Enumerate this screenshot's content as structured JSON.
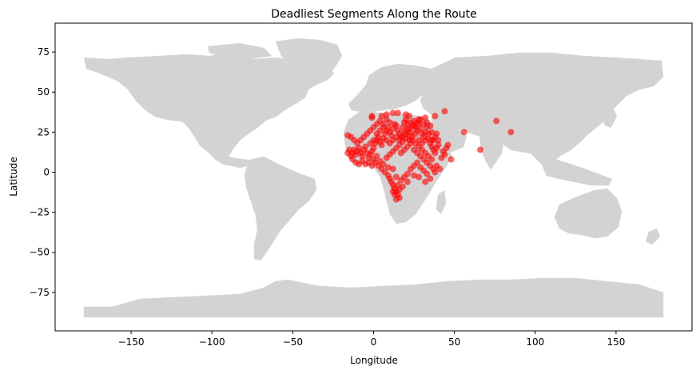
{
  "chart_data": {
    "type": "scatter",
    "title": "Deadliest Segments Along the Route",
    "xlabel": "Longitude",
    "ylabel": "Latitude",
    "xlim": [
      -197,
      197
    ],
    "ylim": [
      -99,
      93
    ],
    "xticks": [
      -150,
      -100,
      -50,
      0,
      50,
      100,
      150
    ],
    "yticks": [
      -75,
      -50,
      -25,
      0,
      25,
      50,
      75
    ],
    "xtick_labels": [
      "−150",
      "−100",
      "−50",
      "0",
      "50",
      "100",
      "150"
    ],
    "ytick_labels": [
      "−75",
      "−50",
      "−25",
      "0",
      "25",
      "50",
      "75"
    ],
    "grid": false,
    "point_color": "#ff0000",
    "land_color": "#d3d3d3",
    "series": [
      {
        "points": [
          [
            -1,
            35
          ],
          [
            -1,
            34
          ],
          [
            5,
            35
          ],
          [
            8,
            36
          ],
          [
            12,
            37
          ],
          [
            15,
            37
          ],
          [
            20,
            36
          ],
          [
            22,
            35
          ],
          [
            28,
            33
          ],
          [
            32,
            34
          ],
          [
            38,
            35
          ],
          [
            44,
            38
          ],
          [
            -14,
            10
          ],
          [
            -13,
            12
          ],
          [
            -12,
            14
          ],
          [
            -11,
            11
          ],
          [
            -10,
            13
          ],
          [
            -9,
            15
          ],
          [
            -8,
            12
          ],
          [
            -7,
            10
          ],
          [
            -6,
            14
          ],
          [
            -5,
            16
          ],
          [
            -4,
            12
          ],
          [
            -3,
            9
          ],
          [
            -2,
            11
          ],
          [
            -1,
            13
          ],
          [
            0,
            15
          ],
          [
            1,
            18
          ],
          [
            2,
            20
          ],
          [
            3,
            22
          ],
          [
            4,
            19
          ],
          [
            5,
            17
          ],
          [
            6,
            21
          ],
          [
            7,
            24
          ],
          [
            8,
            26
          ],
          [
            9,
            28
          ],
          [
            10,
            25
          ],
          [
            11,
            23
          ],
          [
            12,
            27
          ],
          [
            13,
            30
          ],
          [
            14,
            29
          ],
          [
            15,
            26
          ],
          [
            16,
            24
          ],
          [
            17,
            22
          ],
          [
            18,
            28
          ],
          [
            19,
            31
          ],
          [
            20,
            33
          ],
          [
            21,
            30
          ],
          [
            22,
            27
          ],
          [
            23,
            25
          ],
          [
            24,
            29
          ],
          [
            25,
            32
          ],
          [
            26,
            28
          ],
          [
            27,
            26
          ],
          [
            28,
            30
          ],
          [
            29,
            27
          ],
          [
            30,
            24
          ],
          [
            31,
            22
          ],
          [
            32,
            25
          ],
          [
            33,
            28
          ],
          [
            34,
            21
          ],
          [
            35,
            18
          ],
          [
            36,
            16
          ],
          [
            37,
            14
          ],
          [
            38,
            12
          ],
          [
            39,
            15
          ],
          [
            40,
            17
          ],
          [
            0,
            8
          ],
          [
            2,
            10
          ],
          [
            4,
            7
          ],
          [
            6,
            5
          ],
          [
            8,
            9
          ],
          [
            10,
            11
          ],
          [
            12,
            13
          ],
          [
            14,
            15
          ],
          [
            16,
            17
          ],
          [
            18,
            19
          ],
          [
            20,
            21
          ],
          [
            22,
            23
          ],
          [
            24,
            20
          ],
          [
            26,
            18
          ],
          [
            28,
            16
          ],
          [
            30,
            14
          ],
          [
            32,
            12
          ],
          [
            34,
            10
          ],
          [
            36,
            8
          ],
          [
            3,
            4
          ],
          [
            5,
            2
          ],
          [
            7,
            0
          ],
          [
            9,
            -2
          ],
          [
            10,
            -4
          ],
          [
            11,
            -6
          ],
          [
            12,
            -8
          ],
          [
            13,
            -10
          ],
          [
            14,
            -12
          ],
          [
            15,
            -14
          ],
          [
            16,
            -16
          ],
          [
            14,
            -17
          ],
          [
            13,
            -14
          ],
          [
            12,
            -12
          ],
          [
            15,
            -8
          ],
          [
            17,
            -5
          ],
          [
            19,
            -3
          ],
          [
            21,
            -1
          ],
          [
            23,
            2
          ],
          [
            25,
            4
          ],
          [
            27,
            6
          ],
          [
            29,
            3
          ],
          [
            31,
            1
          ],
          [
            33,
            -1
          ],
          [
            -16,
            23
          ],
          [
            -14,
            22
          ],
          [
            -12,
            20
          ],
          [
            -10,
            18
          ],
          [
            -8,
            20
          ],
          [
            -6,
            22
          ],
          [
            -4,
            24
          ],
          [
            -2,
            26
          ],
          [
            0,
            28
          ],
          [
            2,
            30
          ],
          [
            4,
            32
          ],
          [
            6,
            30
          ],
          [
            8,
            33
          ],
          [
            10,
            31
          ],
          [
            -15,
            14
          ],
          [
            -16,
            12
          ],
          [
            -13,
            8
          ],
          [
            -11,
            6
          ],
          [
            -9,
            5
          ],
          [
            -7,
            7
          ],
          [
            -5,
            5
          ],
          [
            -3,
            6
          ],
          [
            -1,
            4
          ],
          [
            1,
            6
          ],
          [
            17,
            12
          ],
          [
            19,
            14
          ],
          [
            21,
            16
          ],
          [
            23,
            18
          ],
          [
            25,
            14
          ],
          [
            27,
            12
          ],
          [
            29,
            10
          ],
          [
            31,
            8
          ],
          [
            33,
            6
          ],
          [
            35,
            4
          ],
          [
            37,
            2
          ],
          [
            38,
            0
          ],
          [
            39,
            4
          ],
          [
            41,
            2
          ],
          [
            42,
            9
          ],
          [
            43,
            13
          ],
          [
            44,
            11
          ],
          [
            45,
            15
          ],
          [
            46,
            17
          ],
          [
            48,
            8
          ],
          [
            35,
            -4
          ],
          [
            32,
            -6
          ],
          [
            28,
            -3
          ],
          [
            25,
            -2
          ],
          [
            21,
            -6
          ],
          [
            18,
            -9
          ],
          [
            16,
            -11
          ],
          [
            14,
            -3
          ],
          [
            12,
            2
          ],
          [
            9,
            3
          ],
          [
            19,
            25
          ],
          [
            21,
            27
          ],
          [
            23,
            31
          ],
          [
            25,
            29
          ],
          [
            27,
            31
          ],
          [
            29,
            33
          ],
          [
            31,
            30
          ],
          [
            33,
            31
          ],
          [
            35,
            29
          ],
          [
            36,
            25
          ],
          [
            37,
            20
          ],
          [
            38,
            22
          ],
          [
            39,
            24
          ],
          [
            40,
            20
          ],
          [
            -2,
            18
          ],
          [
            0,
            20
          ],
          [
            2,
            24
          ],
          [
            4,
            26
          ],
          [
            6,
            28
          ],
          [
            8,
            20
          ],
          [
            10,
            18
          ],
          [
            12,
            20
          ],
          [
            14,
            22
          ],
          [
            16,
            20
          ],
          [
            18,
            22
          ],
          [
            20,
            24
          ],
          [
            22,
            20
          ],
          [
            24,
            22
          ],
          [
            26,
            24
          ],
          [
            28,
            20
          ],
          [
            30,
            18
          ],
          [
            32,
            20
          ],
          [
            34,
            24
          ],
          [
            36,
            20
          ],
          [
            56,
            25
          ],
          [
            66,
            14
          ],
          [
            76,
            32
          ],
          [
            85,
            25
          ]
        ]
      }
    ]
  }
}
